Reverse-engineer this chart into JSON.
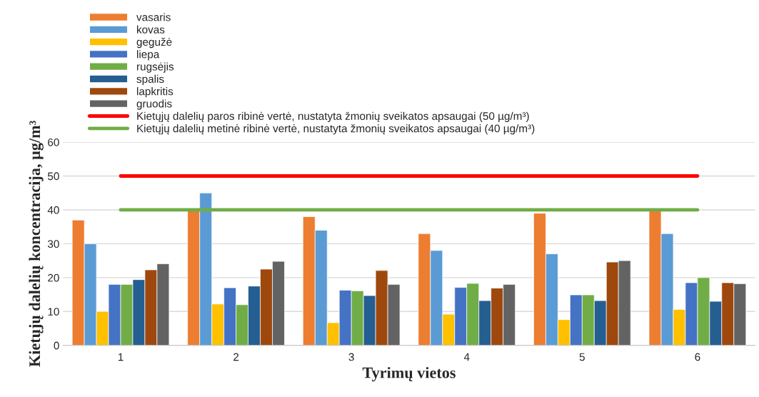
{
  "chart_data": {
    "type": "bar",
    "xlabel": "Tyrimų vietos",
    "ylabel": "Kietųjų dalelių koncentracija, µg/m³",
    "categories": [
      "1",
      "2",
      "3",
      "4",
      "5",
      "6"
    ],
    "series": [
      {
        "name": "vasaris",
        "color": "#ed7d31",
        "values": [
          37,
          40,
          38,
          33,
          39,
          40
        ]
      },
      {
        "name": "kovas",
        "color": "#5b9bd5",
        "values": [
          30,
          45,
          34,
          28,
          27,
          33
        ]
      },
      {
        "name": "gegužė",
        "color": "#ffc000",
        "values": [
          10,
          12.2,
          6.7,
          9.2,
          7.6,
          10.6
        ]
      },
      {
        "name": "liepa",
        "color": "#4472c4",
        "values": [
          18,
          17,
          16.3,
          17.1,
          14.9,
          18.5
        ]
      },
      {
        "name": "rugsėjis",
        "color": "#70ad47",
        "values": [
          18,
          12,
          16.1,
          18.3,
          14.9,
          20
        ]
      },
      {
        "name": "spalis",
        "color": "#255e91",
        "values": [
          19.4,
          17.5,
          14.7,
          13.2,
          13.2,
          13
        ]
      },
      {
        "name": "lapkritis",
        "color": "#9e480e",
        "values": [
          22.3,
          22.5,
          22.1,
          16.9,
          24.6,
          18.5
        ]
      },
      {
        "name": "gruodis",
        "color": "#636363",
        "values": [
          24.1,
          24.8,
          18,
          18,
          25,
          18.2
        ]
      },
      {
        "name": "Kietųjų dalelių paros ribinė vertė, nustatyta žmonių sveikatos apsaugai (50 µg/m³)",
        "type": "line",
        "color": "#ff0000",
        "values": [
          50,
          50,
          50,
          50,
          50,
          50
        ]
      },
      {
        "name": "Kietųjų dalelių metinė ribinė vertė, nustatyta žmonių sveikatos apsaugai (40 µg/m³)",
        "type": "line",
        "color": "#70ad47",
        "values": [
          40,
          40,
          40,
          40,
          40,
          40
        ]
      }
    ],
    "ylim": [
      0,
      60
    ],
    "yticks": [
      0,
      10,
      20,
      30,
      40,
      50,
      60
    ],
    "grid": "y",
    "legend": "top",
    "marker": "none",
    "line_style": "solid"
  }
}
